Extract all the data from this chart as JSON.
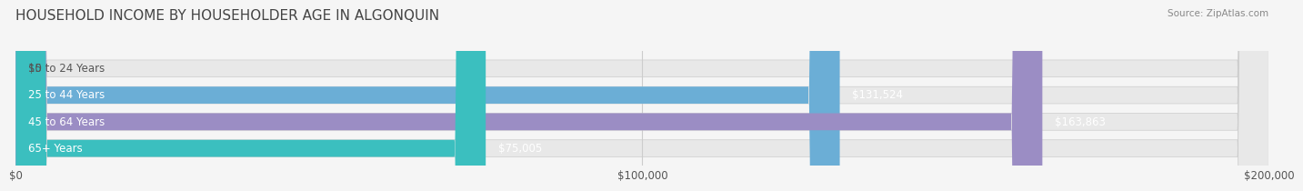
{
  "title": "HOUSEHOLD INCOME BY HOUSEHOLDER AGE IN ALGONQUIN",
  "source": "Source: ZipAtlas.com",
  "categories": [
    "15 to 24 Years",
    "25 to 44 Years",
    "45 to 64 Years",
    "65+ Years"
  ],
  "values": [
    0,
    131524,
    163863,
    75005
  ],
  "bar_colors": [
    "#f08080",
    "#6baed6",
    "#9b8dc4",
    "#3bbfbf"
  ],
  "bar_labels": [
    "$0",
    "$131,524",
    "$163,863",
    "$75,005"
  ],
  "xlim": [
    0,
    200000
  ],
  "xticks": [
    0,
    100000,
    200000
  ],
  "xtick_labels": [
    "$0",
    "$100,000",
    "$200,000"
  ],
  "background_color": "#f0f0f0",
  "bar_bg_color": "#e8e8e8",
  "title_fontsize": 11,
  "label_fontsize": 8.5,
  "tick_fontsize": 8.5,
  "bar_height": 0.62,
  "fig_width": 14.06,
  "fig_height": 2.33
}
